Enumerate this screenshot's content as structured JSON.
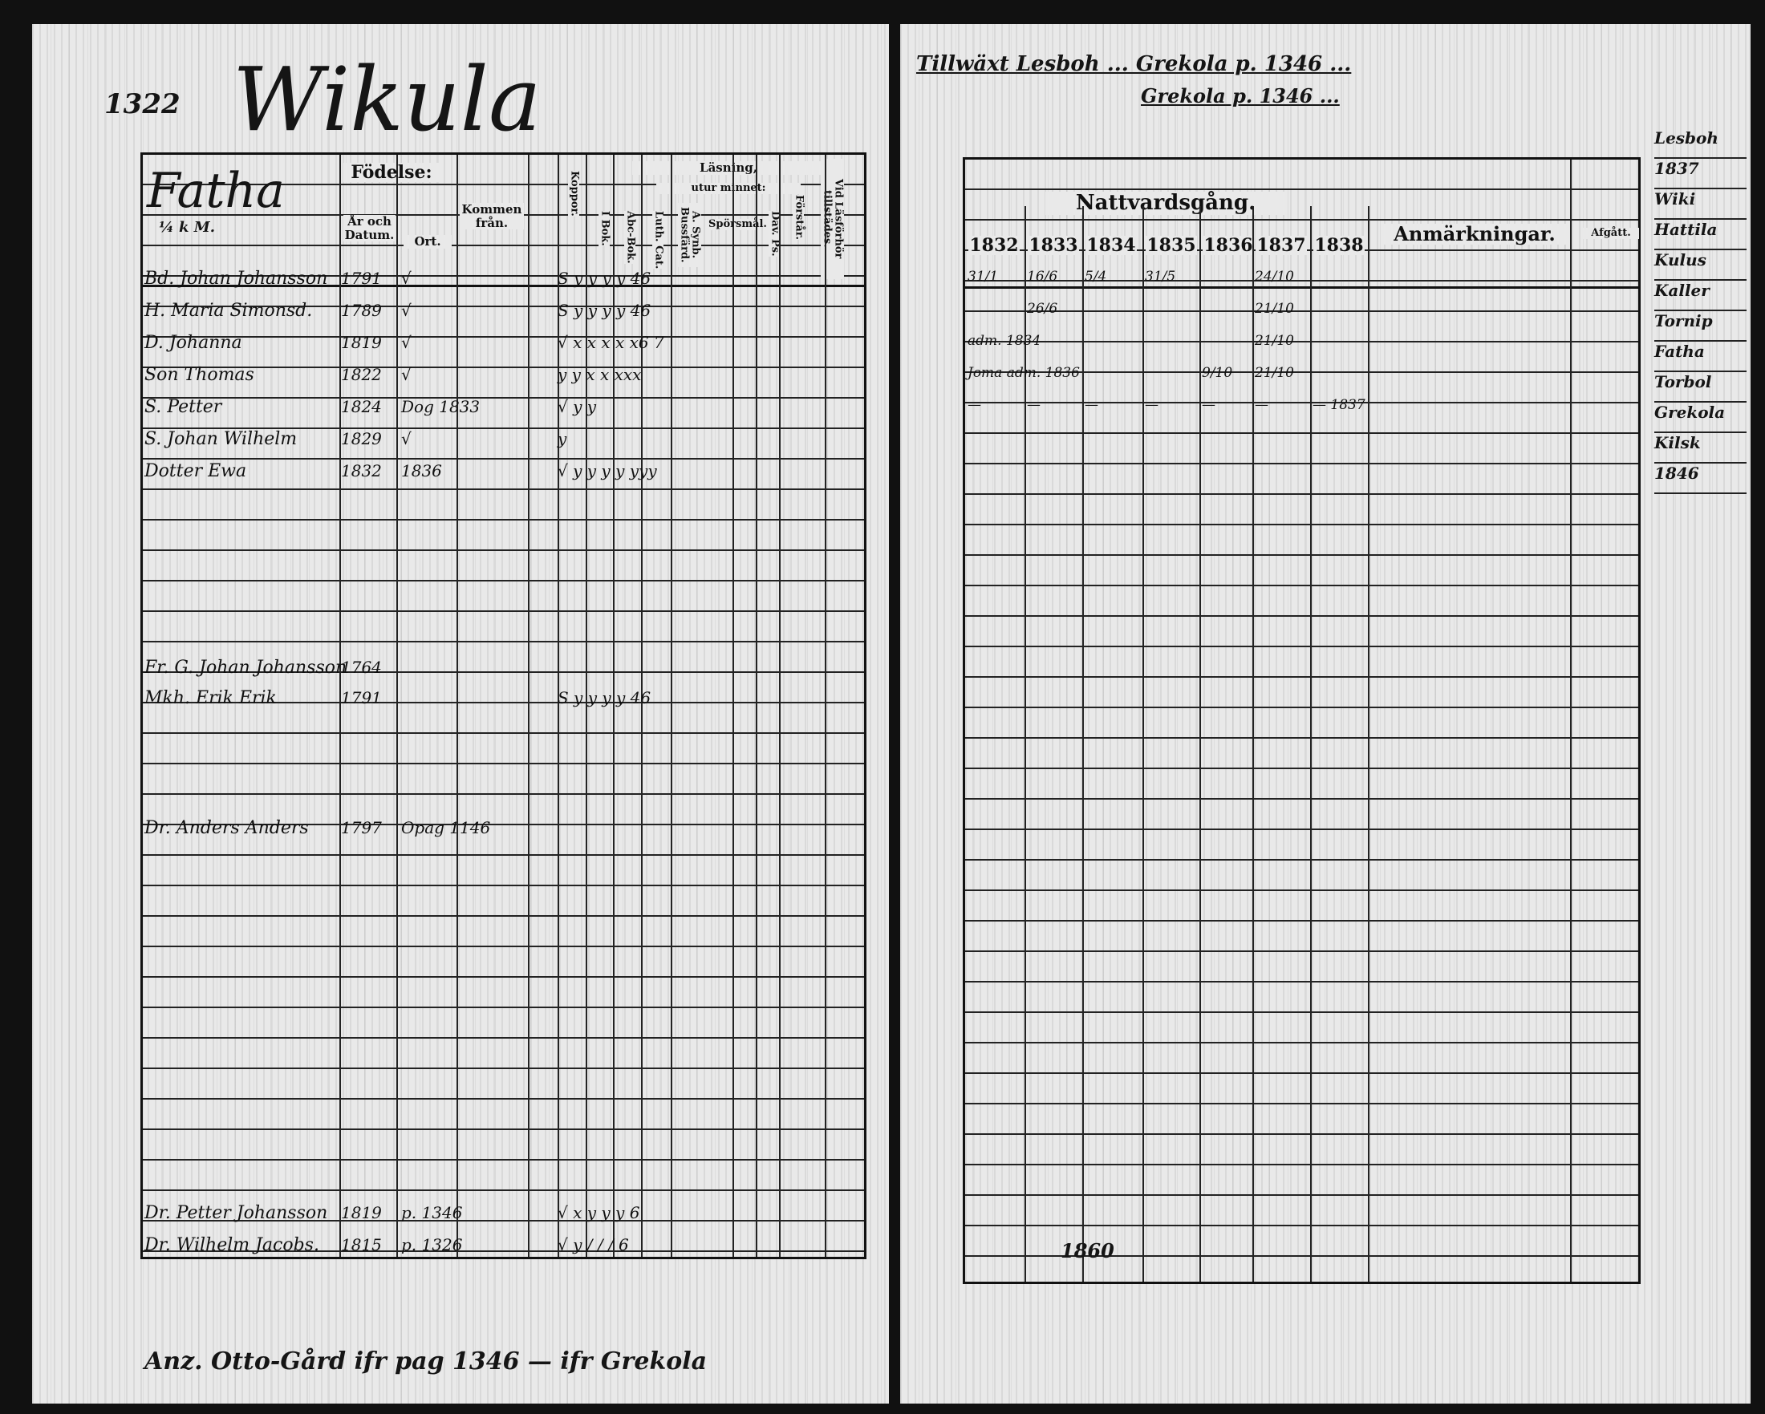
{
  "left_page": {
    "page_number": "1322",
    "village": "Wikula",
    "farm": "Fatha",
    "farm_note": "¼ k M.",
    "headers": {
      "fodelse": "Födelse:",
      "ar_och_datum": "År och Datum.",
      "ort": "Ort.",
      "kommen_fran": "Kommen från.",
      "koppor": "Koppor.",
      "lasning": "Läsning,",
      "utur_minnet": "utur minnet:",
      "i_bok": "I Bok.",
      "abc_bok": "Abc-Bok.",
      "luth_cat": "Luth. Cat.",
      "a_synb": "A. Synb. Bussfärd.",
      "sporsmal": "Spörsmål.",
      "dav_ps": "Dav. Ps.",
      "forstar": "Förstår.",
      "vid_lasforhor": "Vid Läsförhör tillstädes."
    },
    "rows": [
      {
        "name": "Bd. Johan Johansson",
        "year": "1791",
        "ort": "√",
        "marks": "S y y y y 46"
      },
      {
        "name": "H. Maria Simonsd.",
        "year": "1789",
        "ort": "√",
        "marks": "S y y y y 46"
      },
      {
        "name": "D. Johanna",
        "year": "1819",
        "ort": "√",
        "marks": "√ x x x x x6 7"
      },
      {
        "name": "Son Thomas",
        "year": "1822",
        "ort": "√",
        "marks": "y y x x xxx"
      },
      {
        "name": "S. Petter",
        "year": "1824",
        "ort": "Dog 1833",
        "marks": "√ y y"
      },
      {
        "name": "S. Johan Wilhelm",
        "year": "1829",
        "ort": "√",
        "marks": "y"
      },
      {
        "name": "Dotter Ewa",
        "year": "1832",
        "ort": "1836",
        "marks": "√ y y y y yyy"
      },
      {
        "name": "Fr. G. Johan Johansson",
        "year": "1764",
        "ort": "",
        "marks": ""
      },
      {
        "name": "Mkh. Erik Erik",
        "year": "1791",
        "ort": "",
        "marks": "S y y y y 46"
      },
      {
        "name": "Dr. Anders Anders",
        "year": "1797",
        "ort": "Opag 1146",
        "marks": ""
      },
      {
        "name": "Dr. Petter Johansson",
        "year": "1819",
        "ort": "p. 1346",
        "marks": "√ x y y y 6"
      },
      {
        "name": "Dr. Wilhelm Jacobs.",
        "year": "1815",
        "ort": "p. 1326",
        "marks": "√ y / / / 6"
      }
    ],
    "footer_note": "Anz. Otto-Gård  ifr pag 1346 — ifr Grekola"
  },
  "right_page": {
    "top_note_1": "Tillwäxt Lesboh ... Grekola p. 1346 ...",
    "top_note_2": "Grekola p. 1346 ...",
    "headers": {
      "nattvardsgang": "Nattvardsgång.",
      "years": [
        "1832",
        "1833",
        "1834",
        "1835",
        "1836",
        "1837",
        "1838"
      ],
      "anmarkningar": "Anmärkningar.",
      "afgatt": "Afgått."
    },
    "rows": [
      {
        "entries": [
          "31/1",
          "16/6",
          "5/4",
          "31/5",
          "",
          "24/10",
          ""
        ]
      },
      {
        "entries": [
          "",
          "26/6",
          "",
          "",
          "",
          "21/10",
          ""
        ]
      },
      {
        "entries": [
          "adm. 1834",
          "",
          "",
          "",
          "",
          "21/10",
          ""
        ]
      },
      {
        "entries": [
          "Joma adm. 1836",
          "",
          "",
          "",
          "9/10",
          "21/10",
          ""
        ]
      },
      {
        "entries": [
          "—",
          "—",
          "—",
          "—",
          "—",
          "—",
          "— 1837"
        ]
      }
    ],
    "margin_notes": [
      "Lesboh",
      "1837",
      "Wiki",
      "Hattila",
      "Kulus",
      "Kaller",
      "Tornip",
      "Fatha",
      "Torbol",
      "Grekola",
      "Kilsk",
      "1846"
    ],
    "bottom_entry": "1860"
  }
}
